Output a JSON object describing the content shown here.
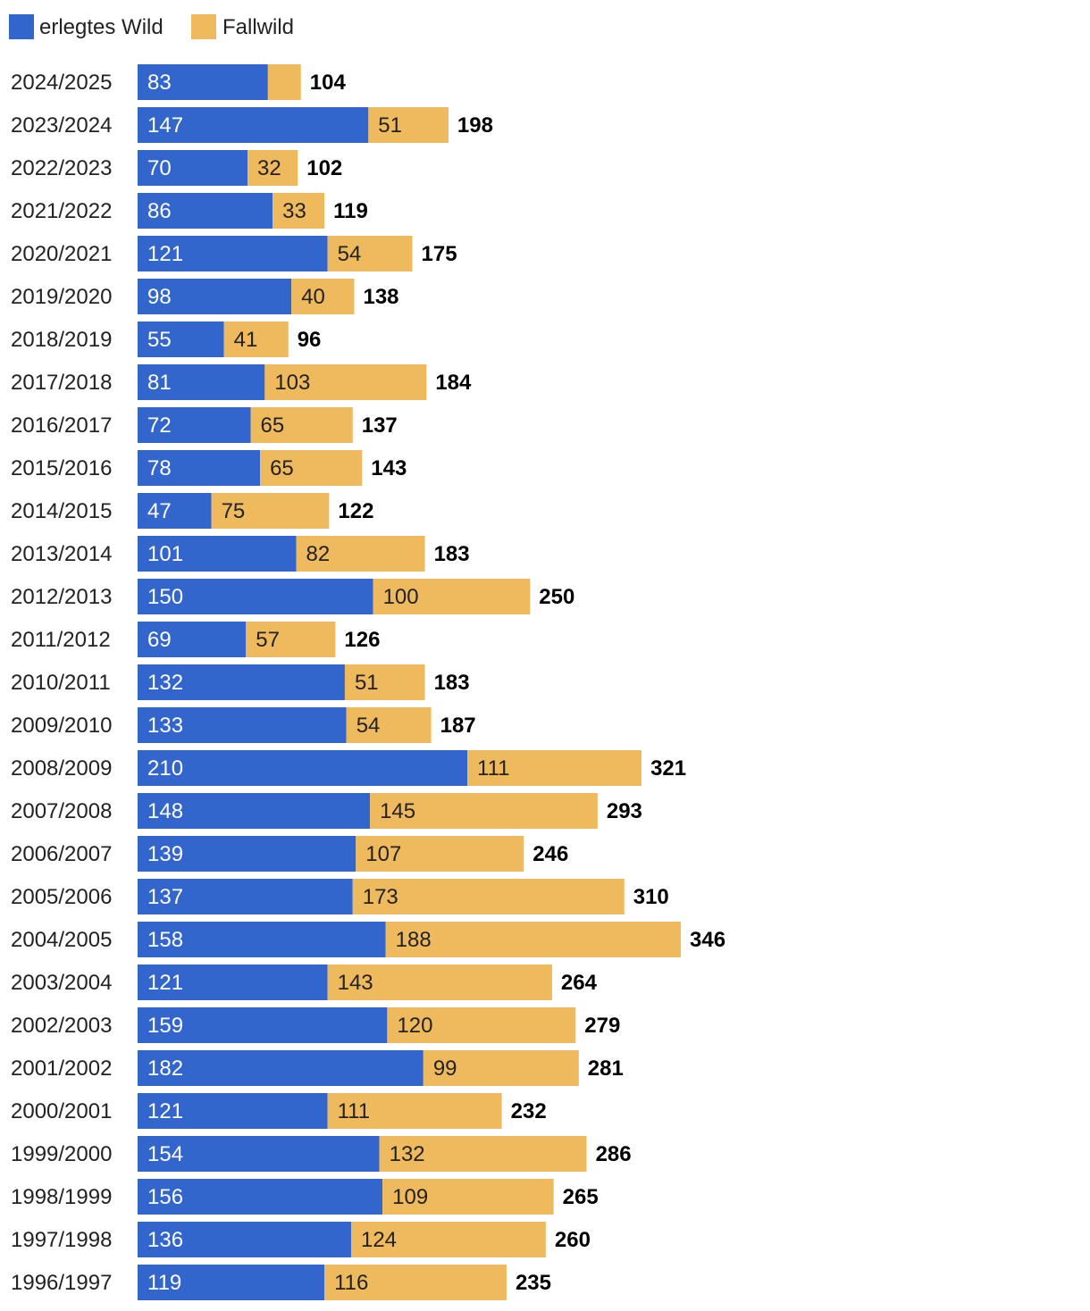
{
  "chart_data": {
    "type": "bar",
    "orientation": "horizontal",
    "stacked": true,
    "title": "",
    "xlabel": "",
    "ylabel": "",
    "legend_position": "top-left",
    "grid": false,
    "categories": [
      "2024/2025",
      "2023/2024",
      "2022/2023",
      "2021/2022",
      "2020/2021",
      "2019/2020",
      "2018/2019",
      "2017/2018",
      "2016/2017",
      "2015/2016",
      "2014/2015",
      "2013/2014",
      "2012/2013",
      "2011/2012",
      "2010/2011",
      "2009/2010",
      "2008/2009",
      "2007/2008",
      "2006/2007",
      "2005/2006",
      "2004/2005",
      "2003/2004",
      "2002/2003",
      "2001/2002",
      "2000/2001",
      "1999/2000",
      "1998/1999",
      "1997/1998",
      "1996/1997"
    ],
    "series": [
      {
        "name": "erlegtes Wild",
        "color": "#3366cc",
        "label_color": "#ffffff",
        "values": [
          83,
          147,
          70,
          86,
          121,
          98,
          55,
          81,
          72,
          78,
          47,
          101,
          150,
          69,
          132,
          133,
          210,
          148,
          139,
          137,
          158,
          121,
          159,
          182,
          121,
          154,
          156,
          136,
          119
        ]
      },
      {
        "name": "Fallwild",
        "color": "#efb95e",
        "label_color": "#222222",
        "values": [
          21,
          51,
          32,
          33,
          54,
          40,
          41,
          103,
          65,
          65,
          75,
          82,
          100,
          57,
          51,
          54,
          111,
          145,
          107,
          173,
          188,
          143,
          120,
          99,
          111,
          132,
          109,
          124,
          116
        ]
      }
    ],
    "totals": [
      104,
      198,
      102,
      119,
      175,
      138,
      96,
      184,
      137,
      143,
      122,
      183,
      250,
      126,
      183,
      187,
      321,
      293,
      246,
      310,
      346,
      264,
      279,
      281,
      232,
      286,
      265,
      260,
      235
    ],
    "hidden_segment_labels": [
      {
        "category": "2024/2025",
        "series": "Fallwild"
      }
    ],
    "xlim": [
      0,
      346
    ]
  }
}
